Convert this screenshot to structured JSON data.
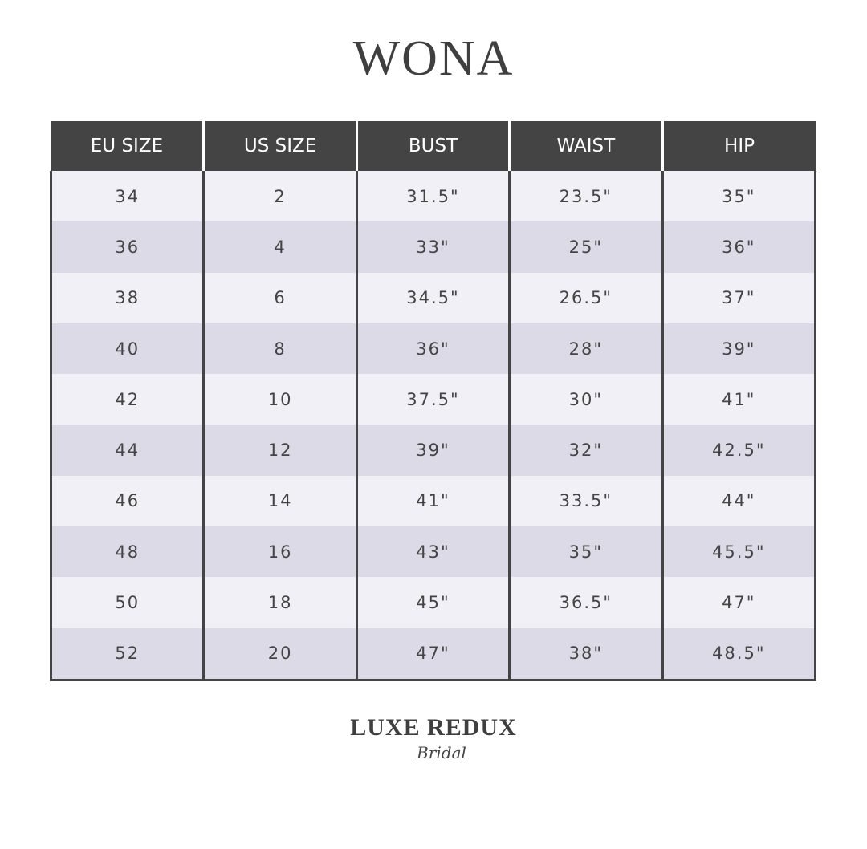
{
  "title": "WONA",
  "table": {
    "headers": [
      "EU SIZE",
      "US SIZE",
      "BUST",
      "WAIST",
      "HIP"
    ],
    "rows": [
      [
        "34",
        "2",
        "31.5\"",
        "23.5\"",
        "35\""
      ],
      [
        "36",
        "4",
        "33\"",
        "25\"",
        "36\""
      ],
      [
        "38",
        "6",
        "34.5\"",
        "26.5\"",
        "37\""
      ],
      [
        "40",
        "8",
        "36\"",
        "28\"",
        "39\""
      ],
      [
        "42",
        "10",
        "37.5\"",
        "30\"",
        "41\""
      ],
      [
        "44",
        "12",
        "39\"",
        "32\"",
        "42.5\""
      ],
      [
        "46",
        "14",
        "41\"",
        "33.5\"",
        "44\""
      ],
      [
        "48",
        "16",
        "43\"",
        "35\"",
        "45.5\""
      ],
      [
        "50",
        "18",
        "45\"",
        "36.5\"",
        "47\""
      ],
      [
        "52",
        "20",
        "47\"",
        "38\"",
        "48.5\""
      ]
    ]
  },
  "logo": {
    "main": "LUXE REDUX",
    "sub": "Bridal"
  },
  "colors": {
    "header": "#444444",
    "row_light": "#f1f0f6",
    "row_dark": "#dcdae7"
  }
}
